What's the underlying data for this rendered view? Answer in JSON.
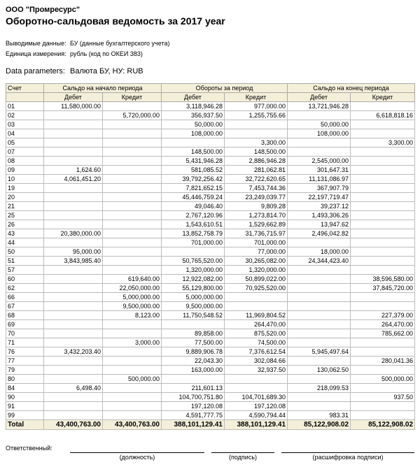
{
  "header": {
    "company": "ООО \"Промресурс\"",
    "title": "Оборотно-сальдовая ведомость за 2017 year",
    "params": [
      {
        "label": "Выводимые данные:",
        "value": "БУ (данные бухгалтерского учета)"
      },
      {
        "label": "Единица измерения:",
        "value": "рубль (код по ОКЕИ 383)"
      }
    ],
    "data_parameters": {
      "label": "Data parameters:",
      "value": "Валюта БУ, НУ: RUB"
    }
  },
  "table": {
    "account_header": "Счет",
    "groups": [
      "Сальдо на начало периода",
      "Обороты за период",
      "Сальдо на конец периода"
    ],
    "subheaders": [
      "Дебет",
      "Кредит",
      "Дебет",
      "Кредит",
      "Дебет",
      "Кредит"
    ],
    "rows": [
      [
        "01",
        "11,580,000.00",
        null,
        "3,118,946.28",
        "977,000.00",
        "13,721,946.28",
        null
      ],
      [
        "02",
        null,
        "5,720,000.00",
        "356,937.50",
        "1,255,755.66",
        null,
        "6,618,818.16"
      ],
      [
        "03",
        null,
        null,
        "50,000.00",
        null,
        "50,000.00",
        null
      ],
      [
        "04",
        null,
        null,
        "108,000.00",
        null,
        "108,000.00",
        null
      ],
      [
        "05",
        null,
        null,
        null,
        "3,300.00",
        null,
        "3,300.00"
      ],
      [
        "07",
        null,
        null,
        "148,500.00",
        "148,500.00",
        null,
        null
      ],
      [
        "08",
        null,
        null,
        "5,431,946.28",
        "2,886,946.28",
        "2,545,000.00",
        null
      ],
      [
        "09",
        "1,624.60",
        null,
        "581,085.52",
        "281,062.81",
        "301,647.31",
        null
      ],
      [
        "10",
        "4,061,451.20",
        null,
        "39,792,256.42",
        "32,722,620.65",
        "11,131,086.97",
        null
      ],
      [
        "19",
        null,
        null,
        "7,821,652.15",
        "7,453,744.36",
        "367,907.79",
        null
      ],
      [
        "20",
        null,
        null,
        "45,446,759.24",
        "23,249,039.77",
        "22,197,719.47",
        null
      ],
      [
        "21",
        null,
        null,
        "49,046.40",
        "9,809.28",
        "39,237.12",
        null
      ],
      [
        "25",
        null,
        null,
        "2,767,120.96",
        "1,273,814.70",
        "1,493,306.26",
        null
      ],
      [
        "26",
        null,
        null,
        "1,543,610.51",
        "1,529,662.89",
        "13,947.62",
        null
      ],
      [
        "43",
        "20,380,000.00",
        null,
        "13,852,758.79",
        "31,736,715.97",
        "2,496,042.82",
        null
      ],
      [
        "44",
        null,
        null,
        "701,000.00",
        "701,000.00",
        null,
        null
      ],
      [
        "50",
        "95,000.00",
        null,
        null,
        "77,000.00",
        "18,000.00",
        null
      ],
      [
        "51",
        "3,843,985.40",
        null,
        "50,765,520.00",
        "30,265,082.00",
        "24,344,423.40",
        null
      ],
      [
        "57",
        null,
        null,
        "1,320,000.00",
        "1,320,000.00",
        null,
        null
      ],
      [
        "60",
        null,
        "619,640.00",
        "12,922,082.00",
        "50,899,022.00",
        null,
        "38,596,580.00"
      ],
      [
        "62",
        null,
        "22,050,000.00",
        "55,129,800.00",
        "70,925,520.00",
        null,
        "37,845,720.00"
      ],
      [
        "66",
        null,
        "5,000,000.00",
        "5,000,000.00",
        null,
        null,
        null
      ],
      [
        "67",
        null,
        "9,500,000.00",
        "9,500,000.00",
        null,
        null,
        null
      ],
      [
        "68",
        null,
        "8,123.00",
        "11,750,548.52",
        "11,969,804.52",
        null,
        "227,379.00"
      ],
      [
        "69",
        null,
        null,
        null,
        "264,470.00",
        null,
        "264,470.00"
      ],
      [
        "70",
        null,
        null,
        "89,858.00",
        "875,520.00",
        null,
        "785,662.00"
      ],
      [
        "71",
        null,
        "3,000.00",
        "77,500.00",
        "74,500.00",
        null,
        null
      ],
      [
        "76",
        "3,432,203.40",
        null,
        "9,889,906.78",
        "7,376,612.54",
        "5,945,497.64",
        null
      ],
      [
        "77",
        null,
        null,
        "22,043.30",
        "302,084.66",
        null,
        "280,041.36"
      ],
      [
        "79",
        null,
        null,
        "163,000.00",
        "32,937.50",
        "130,062.50",
        null
      ],
      [
        "80",
        null,
        "500,000.00",
        null,
        null,
        null,
        "500,000.00"
      ],
      [
        "84",
        "6,498.40",
        null,
        "211,601.13",
        null,
        "218,099.53",
        null
      ],
      [
        "90",
        null,
        null,
        "104,700,751.80",
        "104,701,689.30",
        null,
        "937.50"
      ],
      [
        "91",
        null,
        null,
        "197,120.08",
        "197,120.08",
        null,
        null
      ],
      [
        "99",
        null,
        null,
        "4,591,777.75",
        "4,590,794.44",
        "983.31",
        null
      ]
    ],
    "total": [
      "Total",
      "43,400,763.00",
      "43,400,763.00",
      "388,101,129.41",
      "388,101,129.41",
      "85,122,908.02",
      "85,122,908.02"
    ]
  },
  "footer": {
    "responsible": "Ответственный:",
    "captions": [
      "(должность)",
      "(подпись)",
      "(расшифровка подписи)"
    ]
  }
}
